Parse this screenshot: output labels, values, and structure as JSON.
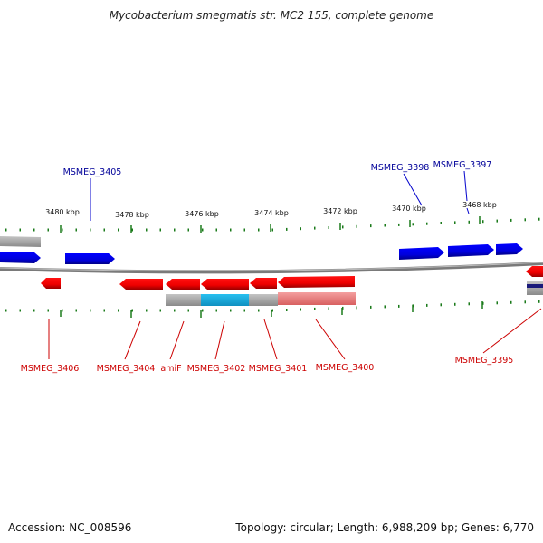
{
  "title": "Mycobacterium smegmatis str. MC2 155, complete genome",
  "footer": {
    "accession": "Accession: NC_008596",
    "summary": "Topology: circular; Length: 6,988,209 bp; Genes: 6,770"
  },
  "ticks": [
    "3480 kbp",
    "3478 kbp",
    "3476 kbp",
    "3474 kbp",
    "3472 kbp",
    "3470 kbp",
    "3468 kbp"
  ],
  "genes_plus": [
    "MSMEG_3405",
    "MSMEG_3398",
    "MSMEG_3397"
  ],
  "genes_minus": [
    "MSMEG_3406",
    "MSMEG_3404",
    "amiF",
    "MSMEG_3402",
    "MSMEG_3401",
    "MSMEG_3400",
    "MSMEG_3395"
  ],
  "colors": {
    "plus_strand": "#0000dd",
    "minus_strand": "#ee0000",
    "label_plus": "#000099",
    "label_minus": "#cc0000",
    "tick": "#1a7a1a",
    "backbone": "#808080",
    "highlight": "#22b4e6"
  }
}
